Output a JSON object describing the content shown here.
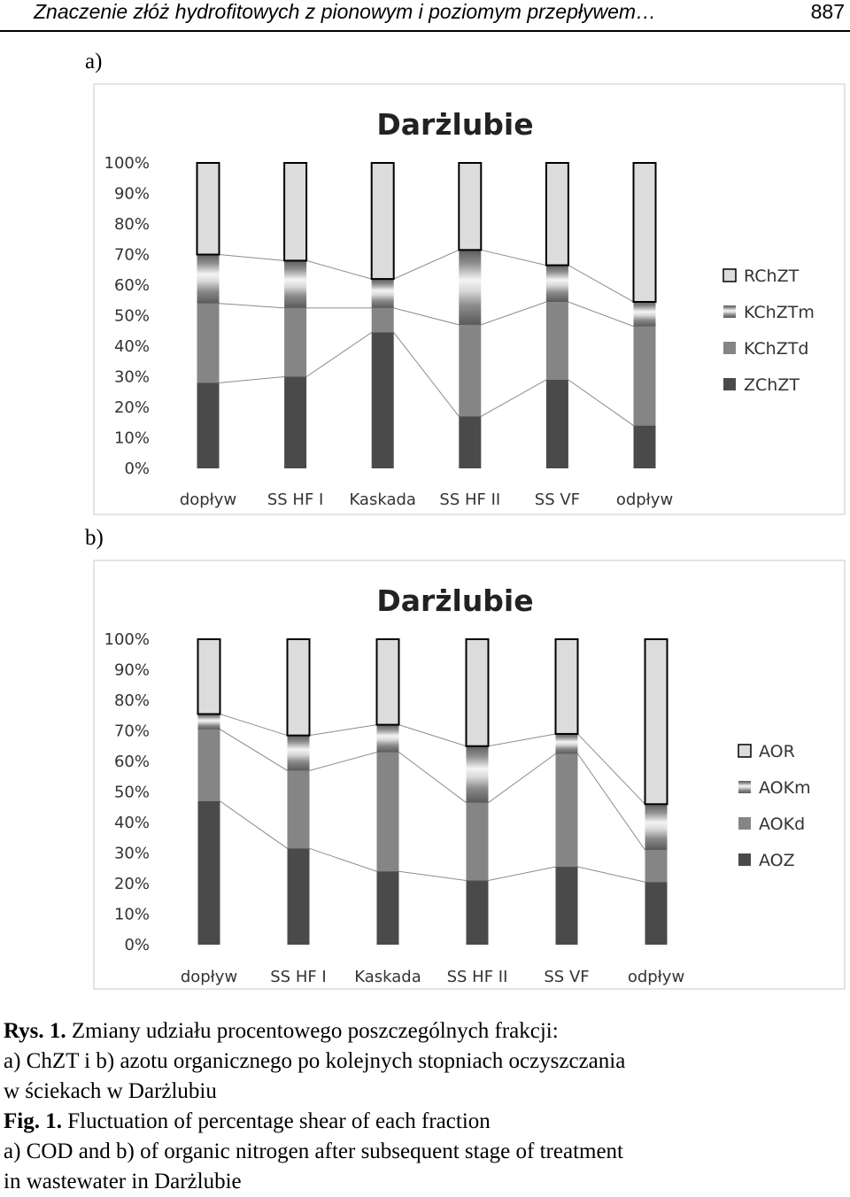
{
  "header": {
    "title": "Znaczenie złóż hydrofitowych z pionowym i poziomym przepływem…",
    "page": "887"
  },
  "panels": {
    "a": "a)",
    "b": "b)"
  },
  "chart_data": [
    {
      "type": "bar",
      "stacked": true,
      "title": "Darżlubie",
      "categories": [
        "dopływ",
        "SS HF I",
        "Kaskada",
        "SS HF II",
        "SS VF",
        "odpływ"
      ],
      "y_ticks": [
        "0%",
        "10%",
        "20%",
        "30%",
        "40%",
        "50%",
        "60%",
        "70%",
        "80%",
        "90%",
        "100%"
      ],
      "ylim": [
        0,
        100
      ],
      "legend_position": "right",
      "series": [
        {
          "name": "ZChZT",
          "values": [
            28,
            30,
            44.5,
            17,
            29,
            14
          ],
          "color": "#4a4a4a"
        },
        {
          "name": "KChZTd",
          "values": [
            26,
            22.5,
            8,
            30,
            25.5,
            32.5
          ],
          "color": "#858585"
        },
        {
          "name": "KChZTm",
          "values": [
            16,
            15.5,
            9.5,
            24.5,
            12,
            8
          ],
          "color": "#9a9a9a"
        },
        {
          "name": "RChZT",
          "values": [
            30,
            32,
            38,
            28.5,
            33.5,
            45.5
          ],
          "color": "#dcdcdc"
        }
      ]
    },
    {
      "type": "bar",
      "stacked": true,
      "title": "Darżlubie",
      "categories": [
        "dopływ",
        "SS HF I",
        "Kaskada",
        "SS HF II",
        "SS VF",
        "odpływ"
      ],
      "y_ticks": [
        "0%",
        "10%",
        "20%",
        "30%",
        "40%",
        "50%",
        "60%",
        "70%",
        "80%",
        "90%",
        "100%"
      ],
      "ylim": [
        0,
        100
      ],
      "legend_position": "right",
      "series": [
        {
          "name": "AOZ",
          "values": [
            47,
            31.5,
            24,
            21,
            25.5,
            20.5
          ],
          "color": "#4a4a4a"
        },
        {
          "name": "AOKd",
          "values": [
            23.5,
            25.5,
            39,
            25.5,
            37,
            10.5
          ],
          "color": "#858585"
        },
        {
          "name": "AOKm",
          "values": [
            5,
            11.5,
            9,
            18.5,
            6.5,
            15
          ],
          "color": "#9a9a9a"
        },
        {
          "name": "AOR",
          "values": [
            24.5,
            31.5,
            28,
            35,
            31,
            54
          ],
          "color": "#dcdcdc"
        }
      ]
    }
  ],
  "caption": {
    "line1_bold": "Rys. 1.",
    "line1_rest": " Zmiany udziału procentowego poszczególnych frakcji:",
    "line2": "a) ChZT i b) azotu organicznego po kolejnych stopniach oczyszczania",
    "line3": "w ściekach w Darżlubiu",
    "line4_bold": "Fig. 1.",
    "line4_rest": " Fluctuation of percentage shear of each fraction",
    "line5": "a) COD and b) of organic nitrogen after subsequent stage of treatment",
    "line6": "in wastewater in Darżlubie"
  }
}
